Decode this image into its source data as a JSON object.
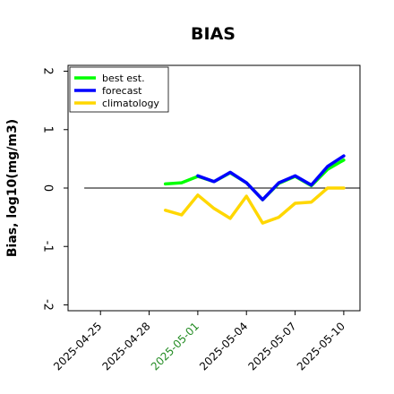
{
  "chart_data": {
    "type": "line",
    "title": "BIAS",
    "xlabel": "",
    "ylabel": "Bias, log10(mg/m3)",
    "ylim": [
      -2.1,
      2.1
    ],
    "yticks": [
      -2,
      -1,
      0,
      1,
      2
    ],
    "ytick_labels": [
      "-2",
      "-1",
      "0",
      "1",
      "2"
    ],
    "xlim": [
      "2025-04-23",
      "2025-05-11"
    ],
    "xticks": [
      "2025-04-25",
      "2025-04-28",
      "2025-05-01",
      "2025-05-04",
      "2025-05-07",
      "2025-05-10"
    ],
    "highlight_tick": "2025-05-01",
    "highlight_color": "#228b22",
    "zero_line": 0,
    "grid": false,
    "legend": "top-left",
    "series": [
      {
        "name": "best est.",
        "color": "#00ff00",
        "x": [
          "2025-04-29",
          "2025-04-30",
          "2025-05-01",
          "2025-05-02",
          "2025-05-03",
          "2025-05-04",
          "2025-05-05",
          "2025-05-06",
          "2025-05-07",
          "2025-05-08",
          "2025-05-09",
          "2025-05-10"
        ],
        "values": [
          0.07,
          0.09,
          0.2,
          0.11,
          0.26,
          0.09,
          -0.2,
          0.08,
          0.2,
          0.04,
          0.32,
          0.48
        ]
      },
      {
        "name": "forecast",
        "color": "#0000ff",
        "x": [
          "2025-05-01",
          "2025-05-02",
          "2025-05-03",
          "2025-05-04",
          "2025-05-05",
          "2025-05-06",
          "2025-05-07",
          "2025-05-08",
          "2025-05-09",
          "2025-05-10"
        ],
        "values": [
          0.21,
          0.11,
          0.27,
          0.09,
          -0.2,
          0.09,
          0.21,
          0.05,
          0.37,
          0.55
        ]
      },
      {
        "name": "climatology",
        "color": "#ffd700",
        "x": [
          "2025-04-29",
          "2025-04-30",
          "2025-05-01",
          "2025-05-02",
          "2025-05-03",
          "2025-05-04",
          "2025-05-05",
          "2025-05-06",
          "2025-05-07",
          "2025-05-08",
          "2025-05-09",
          "2025-05-10"
        ],
        "values": [
          -0.38,
          -0.46,
          -0.12,
          -0.35,
          -0.52,
          -0.14,
          -0.6,
          -0.5,
          -0.26,
          -0.24,
          0.0,
          0.0
        ]
      }
    ]
  }
}
